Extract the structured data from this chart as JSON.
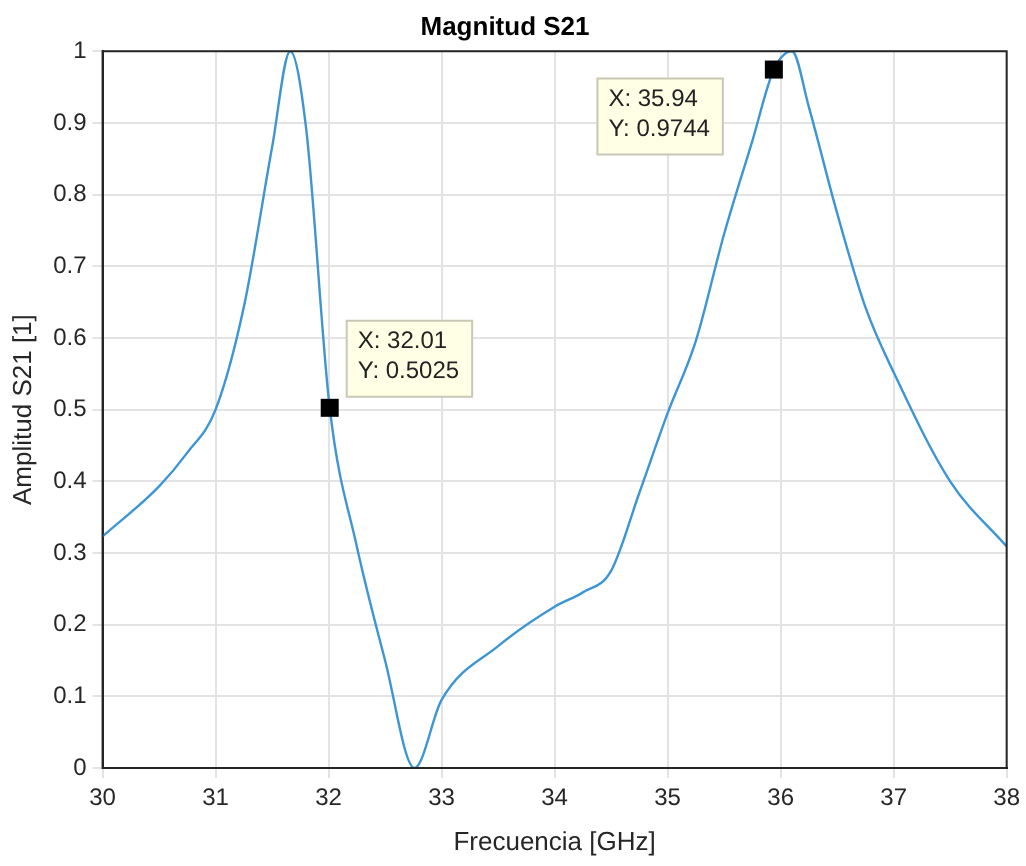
{
  "chart_data": {
    "type": "line",
    "title": "Magnitud S21",
    "xlabel": "Frecuencia [GHz]",
    "ylabel": "Amplitud S21 [1]",
    "x": [
      30,
      30.5,
      30.75,
      31,
      31.25,
      31.5,
      31.66,
      31.8,
      32.01,
      32.25,
      32.5,
      32.76,
      33,
      33.5,
      34,
      34.25,
      34.5,
      34.75,
      35,
      35.25,
      35.5,
      35.75,
      35.94,
      36.1,
      36.25,
      36.5,
      36.75,
      37,
      37.5,
      38
    ],
    "series": [
      {
        "color": "#3d95d3",
        "values": [
          0.323,
          0.393,
          0.44,
          0.5,
          0.643,
          0.866,
          1,
          0.894,
          0.5025,
          0.309,
          0.15,
          0,
          0.095,
          0.17,
          0.225,
          0.245,
          0.275,
          0.384,
          0.495,
          0.596,
          0.745,
          0.875,
          0.9744,
          1,
          0.922,
          0.774,
          0.643,
          0.552,
          0.4,
          0.309
        ]
      }
    ],
    "xlim": [
      30,
      38
    ],
    "xticks": [
      30,
      31,
      32,
      33,
      34,
      35,
      36,
      37,
      38
    ],
    "ylim": [
      0,
      1
    ],
    "yticks": [
      0,
      0.1,
      0.2,
      0.3,
      0.4,
      0.5,
      0.6,
      0.7,
      0.8,
      0.9,
      1
    ],
    "grid": true,
    "marker": "none",
    "line_style": "solid",
    "annotations": [
      {
        "text": "X: 32.01\nY: 0.5025",
        "x": 32.01,
        "y": 0.5025
      },
      {
        "text": "X: 35.94\nY: 0.9744",
        "x": 35.94,
        "y": 0.9744
      }
    ]
  }
}
